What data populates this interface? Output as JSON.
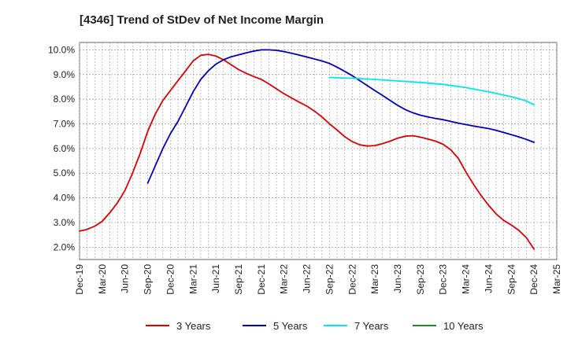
{
  "chart_data": {
    "type": "line",
    "title": "[4346]  Trend of StDev of Net Income Margin",
    "xlabel": "",
    "ylabel": "",
    "x_ticks": [
      "Dec-19",
      "Mar-20",
      "Jun-20",
      "Sep-20",
      "Dec-20",
      "Mar-21",
      "Jun-21",
      "Sep-21",
      "Dec-21",
      "Mar-22",
      "Jun-22",
      "Sep-22",
      "Dec-22",
      "Mar-23",
      "Jun-23",
      "Sep-23",
      "Dec-23",
      "Mar-24",
      "Jun-24",
      "Sep-24",
      "Dec-24",
      "Mar-25"
    ],
    "y_ticks": [
      "2.0%",
      "3.0%",
      "4.0%",
      "5.0%",
      "6.0%",
      "7.0%",
      "8.0%",
      "9.0%",
      "10.0%"
    ],
    "ylim": [
      1.5,
      10.3
    ],
    "grid": true,
    "legend_position": "bottom",
    "series": [
      {
        "name": "3 Years",
        "color": "#dd0000",
        "points": [
          [
            "Dec-19",
            2.65
          ],
          [
            "Jan-20",
            2.72
          ],
          [
            "Feb-20",
            2.85
          ],
          [
            "Mar-20",
            3.05
          ],
          [
            "Apr-20",
            3.4
          ],
          [
            "May-20",
            3.8
          ],
          [
            "Jun-20",
            4.3
          ],
          [
            "Jul-20",
            5.0
          ],
          [
            "Aug-20",
            5.8
          ],
          [
            "Sep-20",
            6.7
          ],
          [
            "Oct-20",
            7.4
          ],
          [
            "Nov-20",
            7.95
          ],
          [
            "Dec-20",
            8.35
          ],
          [
            "Jan-21",
            8.75
          ],
          [
            "Feb-21",
            9.15
          ],
          [
            "Mar-21",
            9.55
          ],
          [
            "Apr-21",
            9.78
          ],
          [
            "May-21",
            9.82
          ],
          [
            "Jun-21",
            9.75
          ],
          [
            "Jul-21",
            9.6
          ],
          [
            "Aug-21",
            9.4
          ],
          [
            "Sep-21",
            9.2
          ],
          [
            "Oct-21",
            9.05
          ],
          [
            "Nov-21",
            8.92
          ],
          [
            "Dec-21",
            8.8
          ],
          [
            "Jan-22",
            8.62
          ],
          [
            "Feb-22",
            8.42
          ],
          [
            "Mar-22",
            8.22
          ],
          [
            "Apr-22",
            8.05
          ],
          [
            "May-22",
            7.88
          ],
          [
            "Jun-22",
            7.72
          ],
          [
            "Jul-22",
            7.52
          ],
          [
            "Aug-22",
            7.28
          ],
          [
            "Sep-22",
            7.0
          ],
          [
            "Oct-22",
            6.75
          ],
          [
            "Nov-22",
            6.48
          ],
          [
            "Dec-22",
            6.28
          ],
          [
            "Jan-23",
            6.15
          ],
          [
            "Feb-23",
            6.1
          ],
          [
            "Mar-23",
            6.12
          ],
          [
            "Apr-23",
            6.2
          ],
          [
            "May-23",
            6.3
          ],
          [
            "Jun-23",
            6.42
          ],
          [
            "Jul-23",
            6.5
          ],
          [
            "Aug-23",
            6.52
          ],
          [
            "Sep-23",
            6.46
          ],
          [
            "Oct-23",
            6.38
          ],
          [
            "Nov-23",
            6.3
          ],
          [
            "Dec-23",
            6.17
          ],
          [
            "Jan-24",
            5.95
          ],
          [
            "Feb-24",
            5.6
          ],
          [
            "Mar-24",
            5.05
          ],
          [
            "Apr-24",
            4.55
          ],
          [
            "May-24",
            4.1
          ],
          [
            "Jun-24",
            3.7
          ],
          [
            "Jul-24",
            3.35
          ],
          [
            "Aug-24",
            3.08
          ],
          [
            "Sep-24",
            2.9
          ],
          [
            "Oct-24",
            2.68
          ],
          [
            "Nov-24",
            2.38
          ],
          [
            "Dec-24",
            1.92
          ]
        ]
      },
      {
        "name": "5 Years",
        "color": "#0000bb",
        "points": [
          [
            "Dec-19",
            null
          ],
          [
            "Sep-20",
            4.6
          ],
          [
            "Oct-20",
            5.3
          ],
          [
            "Nov-20",
            6.0
          ],
          [
            "Dec-20",
            6.6
          ],
          [
            "Jan-21",
            7.1
          ],
          [
            "Feb-21",
            7.7
          ],
          [
            "Mar-21",
            8.3
          ],
          [
            "Apr-21",
            8.8
          ],
          [
            "May-21",
            9.15
          ],
          [
            "Jun-21",
            9.42
          ],
          [
            "Jul-21",
            9.6
          ],
          [
            "Aug-21",
            9.72
          ],
          [
            "Sep-21",
            9.8
          ],
          [
            "Oct-21",
            9.88
          ],
          [
            "Nov-21",
            9.95
          ],
          [
            "Dec-21",
            10.0
          ],
          [
            "Jan-22",
            10.0
          ],
          [
            "Feb-22",
            9.98
          ],
          [
            "Mar-22",
            9.93
          ],
          [
            "Apr-22",
            9.86
          ],
          [
            "May-22",
            9.79
          ],
          [
            "Jun-22",
            9.71
          ],
          [
            "Jul-22",
            9.63
          ],
          [
            "Aug-22",
            9.55
          ],
          [
            "Sep-22",
            9.45
          ],
          [
            "Oct-22",
            9.3
          ],
          [
            "Nov-22",
            9.13
          ],
          [
            "Dec-22",
            8.95
          ],
          [
            "Jan-23",
            8.75
          ],
          [
            "Feb-23",
            8.55
          ],
          [
            "Mar-23",
            8.35
          ],
          [
            "Apr-23",
            8.15
          ],
          [
            "May-23",
            7.95
          ],
          [
            "Jun-23",
            7.75
          ],
          [
            "Jul-23",
            7.58
          ],
          [
            "Aug-23",
            7.45
          ],
          [
            "Sep-23",
            7.35
          ],
          [
            "Oct-23",
            7.28
          ],
          [
            "Nov-23",
            7.22
          ],
          [
            "Dec-23",
            7.17
          ],
          [
            "Jan-24",
            7.1
          ],
          [
            "Feb-24",
            7.03
          ],
          [
            "Mar-24",
            6.97
          ],
          [
            "Apr-24",
            6.91
          ],
          [
            "May-24",
            6.86
          ],
          [
            "Jun-24",
            6.81
          ],
          [
            "Jul-24",
            6.74
          ],
          [
            "Aug-24",
            6.65
          ],
          [
            "Sep-24",
            6.56
          ],
          [
            "Oct-24",
            6.47
          ],
          [
            "Nov-24",
            6.37
          ],
          [
            "Dec-24",
            6.25
          ]
        ]
      },
      {
        "name": "7 Years",
        "color": "#00e5ee",
        "points": [
          [
            "Sep-22",
            8.88
          ],
          [
            "Dec-22",
            8.85
          ],
          [
            "Mar-23",
            8.8
          ],
          [
            "Jun-23",
            8.74
          ],
          [
            "Sep-23",
            8.68
          ],
          [
            "Dec-23",
            8.6
          ],
          [
            "Mar-24",
            8.47
          ],
          [
            "Jun-24",
            8.3
          ],
          [
            "Sep-24",
            8.1
          ],
          [
            "Oct-24",
            8.02
          ],
          [
            "Nov-24",
            7.92
          ],
          [
            "Dec-24",
            7.78
          ]
        ]
      },
      {
        "name": "10 Years",
        "color": "#228b22",
        "points": []
      }
    ]
  }
}
